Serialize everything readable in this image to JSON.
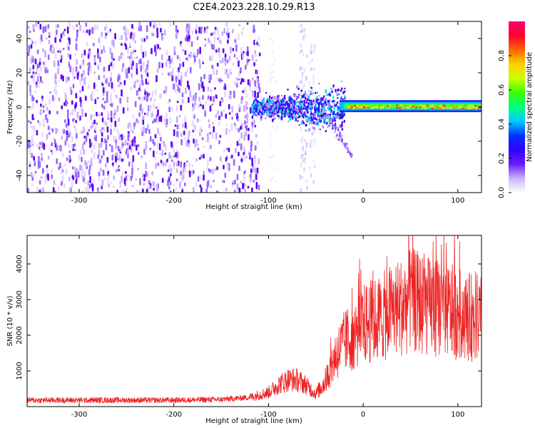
{
  "figure_title": "C2E4.2023.228.10.29.R13",
  "chart_data": [
    {
      "type": "heatmap",
      "panel": "spectrogram",
      "xlabel": "Height of straight line (km)",
      "ylabel": "Frequency (Hz)",
      "xlim": [
        -355,
        125
      ],
      "ylim": [
        -50,
        50
      ],
      "xticks": [
        -300,
        -200,
        -100,
        0,
        100
      ],
      "yticks": [
        -40,
        -20,
        0,
        20,
        40
      ],
      "colorbar": {
        "label": "Normalized spectral amplitude",
        "range": [
          0,
          1
        ],
        "ticks": [
          "0.0",
          "0.2",
          "0.4",
          "0.6",
          "0.8"
        ],
        "colors": [
          "#ffffff",
          "#c9b3ff",
          "#6a1aff",
          "#3300ff",
          "#0033ff",
          "#00ccff",
          "#00ff80",
          "#33ff00",
          "#ccff00",
          "#ffd000",
          "#ff6600",
          "#ff0033",
          "#ff0066"
        ]
      },
      "regions": [
        {
          "name": "diffuse noise",
          "x": [
            -355,
            -110
          ],
          "freq": [
            -50,
            50
          ],
          "amplitude": 0.15
        },
        {
          "name": "sparse column",
          "x": [
            -68,
            -52
          ],
          "freq": [
            -50,
            50
          ],
          "amplitude": 0.08
        },
        {
          "name": "broadened band",
          "x": [
            -115,
            -20
          ],
          "freq": [
            -12,
            12
          ],
          "amplitude": 0.3
        },
        {
          "name": "narrow carrier",
          "x": [
            -25,
            125
          ],
          "freq": [
            -2,
            3
          ],
          "amplitude": 0.8
        }
      ]
    },
    {
      "type": "line",
      "panel": "snr",
      "xlabel": "Height of straight line (km)",
      "ylabel": "SNR (10 * v/v)",
      "xlim": [
        -355,
        125
      ],
      "ylim": [
        0,
        4800
      ],
      "xticks": [
        -300,
        -200,
        -100,
        0,
        100
      ],
      "yticks": [
        1000,
        2000,
        3000,
        4000
      ],
      "color": "#ee2222",
      "series": [
        {
          "name": "SNR",
          "x": [
            -355,
            -300,
            -250,
            -200,
            -150,
            -120,
            -100,
            -90,
            -80,
            -70,
            -60,
            -50,
            -40,
            -30,
            -20,
            -10,
            0,
            10,
            20,
            30,
            40,
            50,
            60,
            70,
            80,
            90,
            100,
            110,
            125
          ],
          "values": [
            180,
            180,
            180,
            180,
            200,
            260,
            400,
            600,
            750,
            750,
            600,
            350,
            700,
            1400,
            1800,
            2000,
            2300,
            2400,
            2500,
            2700,
            2800,
            3000,
            2900,
            2800,
            2800,
            2700,
            2600,
            2500,
            2500
          ]
        }
      ]
    }
  ]
}
